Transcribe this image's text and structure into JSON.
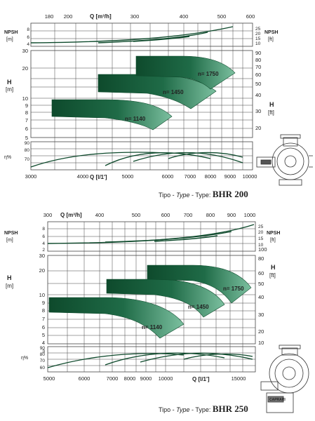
{
  "charts": [
    {
      "id": "bhr200",
      "q_m3h_ticks": [
        "180",
        "200",
        "300",
        "400",
        "500",
        "600"
      ],
      "q_m3h_label": "Q [m³/h]",
      "npsh_m_label": [
        "NPSH",
        "[m]"
      ],
      "npsh_m_ticks": [
        "8",
        "6",
        "4"
      ],
      "npsh_ft_label": [
        "NPSH",
        "[ft]"
      ],
      "npsh_ft_ticks": [
        "25",
        "20",
        "15",
        "10"
      ],
      "h_m_label": [
        "H",
        "[m]"
      ],
      "h_m_ticks": [
        "30",
        "20",
        "10",
        "9",
        "8",
        "7",
        "6",
        "5"
      ],
      "h_ft_label": [
        "H",
        "[ft]"
      ],
      "h_ft_ticks": [
        "90",
        "80",
        "70",
        "60",
        "50",
        "40",
        "30",
        "20"
      ],
      "eta_label": "η%",
      "eta_ticks": [
        "90",
        "80",
        "70"
      ],
      "q_ls_ticks": [
        "3000",
        "4000",
        "5000",
        "6000",
        "7000",
        "8000",
        "9000",
        "10000"
      ],
      "q_ls_label": "Q [l/1']",
      "speeds": [
        "n= 1140",
        "n= 1450",
        "n= 1750"
      ],
      "caption": {
        "a": "Tipo - ",
        "b": "Type",
        "c": " - Type: ",
        "model": "BHR 200"
      }
    },
    {
      "id": "bhr250",
      "q_m3h_ticks": [
        "300",
        "400",
        "500",
        "600",
        "700",
        "800",
        "900",
        "1000"
      ],
      "q_m3h_label": "Q [m³/h]",
      "npsh_m_label": [
        "NPSH",
        "[m]"
      ],
      "npsh_m_ticks": [
        "8",
        "6",
        "4",
        "2"
      ],
      "npsh_ft_label": [
        "NPSH",
        "[ft]"
      ],
      "npsh_ft_ticks": [
        "25",
        "20",
        "15",
        "10"
      ],
      "h_m_label": [
        "H",
        "[m]"
      ],
      "h_m_ticks": [
        "30",
        "20",
        "10",
        "9",
        "8",
        "7",
        "6",
        "5",
        "4",
        "3"
      ],
      "h_ft_label": [
        "H",
        "[ft]"
      ],
      "h_ft_ticks": [
        "100",
        "80",
        "60",
        "50",
        "40",
        "30",
        "20",
        "10"
      ],
      "eta_label": "η%",
      "eta_ticks": [
        "90",
        "80",
        "70",
        "60"
      ],
      "q_ls_ticks": [
        "5000",
        "6000",
        "7000",
        "8000",
        "9000",
        "10000",
        "15000"
      ],
      "q_ls_label": "Q [l/1']",
      "speeds": [
        "n= 1140",
        "n= 1450",
        "n= 1750"
      ],
      "caption": {
        "a": "Tipo - ",
        "b": "Type",
        "c": " - Type: ",
        "model": "BHR 250"
      }
    }
  ],
  "logo_text": "CAPRARI",
  "colors": {
    "curve_dark": "#0e4a2c",
    "curve_light": "#5fa887",
    "grid": "#444444"
  }
}
